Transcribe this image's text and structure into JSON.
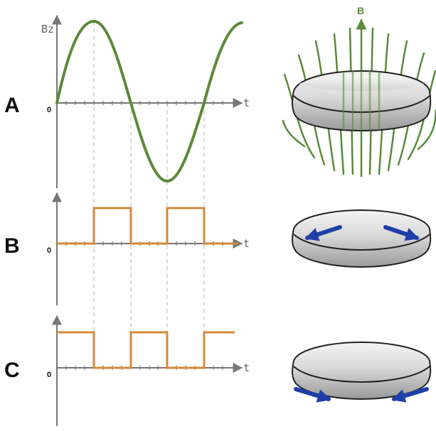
{
  "panels": [
    {
      "label": "A",
      "y_axis_label": "Bz",
      "x_axis_label": "t",
      "origin_label": "0"
    },
    {
      "label": "B",
      "x_axis_label": "t",
      "origin_label": "0"
    },
    {
      "label": "C",
      "x_axis_label": "t",
      "origin_label": "0"
    }
  ],
  "field_label": "B",
  "colors": {
    "sine": "#5a8a3a",
    "square": "#d4893a",
    "axis": "#777777",
    "guide": "#bbbbbb",
    "arrow": "#1f3fa8",
    "field_lines": "#5a8a3a"
  },
  "icons": [
    "disk-with-field-lines",
    "disk-with-arrows-top",
    "disk-with-arrows-bottom"
  ]
}
